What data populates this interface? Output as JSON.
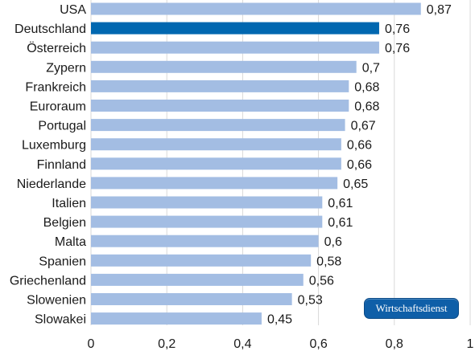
{
  "chart_data": {
    "type": "bar",
    "orientation": "horizontal",
    "categories": [
      "USA",
      "Deutschland",
      "Österreich",
      "Zypern",
      "Frankreich",
      "Euroraum",
      "Portugal",
      "Luxemburg",
      "Finnland",
      "Niederlande",
      "Italien",
      "Belgien",
      "Malta",
      "Spanien",
      "Griechenland",
      "Slowenien",
      "Slowakei"
    ],
    "values": [
      0.87,
      0.76,
      0.76,
      0.7,
      0.68,
      0.68,
      0.67,
      0.66,
      0.66,
      0.65,
      0.61,
      0.61,
      0.6,
      0.58,
      0.56,
      0.53,
      0.45
    ],
    "value_labels": [
      "0,87",
      "0,76",
      "0,76",
      "0,7",
      "0,68",
      "0,68",
      "0,67",
      "0,66",
      "0,66",
      "0,65",
      "0,61",
      "0,61",
      "0,6",
      "0,58",
      "0,56",
      "0,53",
      "0,45"
    ],
    "highlight": "Deutschland",
    "xlim": [
      0,
      1
    ],
    "xticks": [
      0,
      0.2,
      0.4,
      0.6,
      0.8,
      1
    ],
    "xtick_labels": [
      "0",
      "0,2",
      "0,4",
      "0,6",
      "0,8",
      "1"
    ],
    "grid": true,
    "colors": {
      "bar": "#a3bde3",
      "highlight": "#0067b0",
      "grid": "#d9d9d9"
    }
  },
  "badge": {
    "text": "Wirtschaftsdienst"
  }
}
